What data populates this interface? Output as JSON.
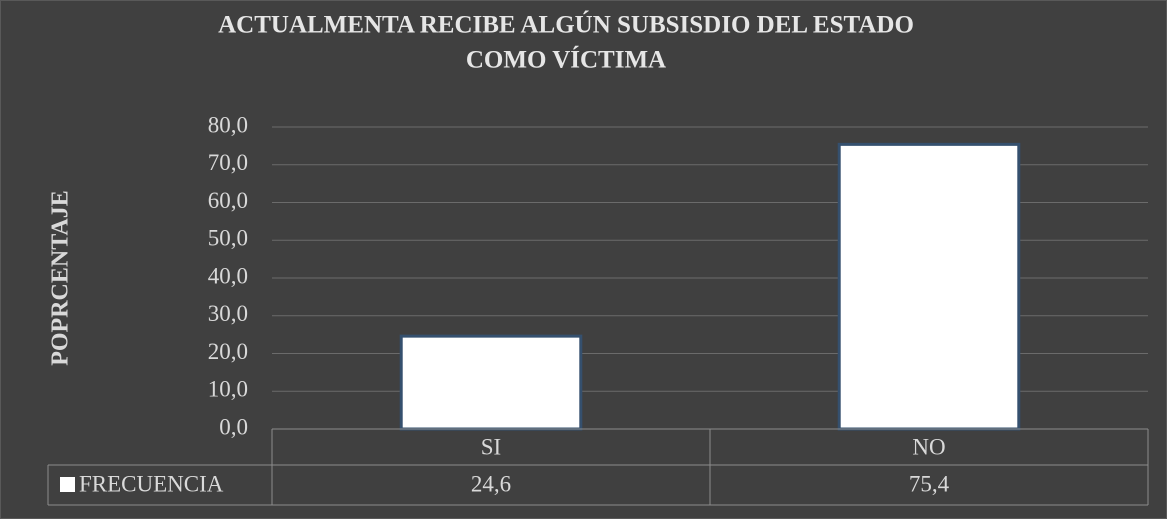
{
  "chart_data": {
    "type": "bar",
    "title": [
      "ACTUALMENTA RECIBE ALGÚN SUBSISDIO DEL ESTADO",
      "COMO VÍCTIMA"
    ],
    "y_axis_label": "POPRCENTAJE",
    "categories": [
      "SI",
      "NO"
    ],
    "series": [
      {
        "name": "FRECUENCIA",
        "color": "#ffffff",
        "values": [
          24.6,
          75.4
        ],
        "value_labels": [
          "24,6",
          "75,4"
        ]
      }
    ],
    "ylim": [
      0,
      80
    ],
    "yticks": [
      {
        "value": 0,
        "label": "0,0"
      },
      {
        "value": 10,
        "label": "10,0"
      },
      {
        "value": 20,
        "label": "20,0"
      },
      {
        "value": 30,
        "label": "30,0"
      },
      {
        "value": 40,
        "label": "40,0"
      },
      {
        "value": 50,
        "label": "50,0"
      },
      {
        "value": 60,
        "label": "60,0"
      },
      {
        "value": 70,
        "label": "70,0"
      },
      {
        "value": 80,
        "label": "80,0"
      }
    ],
    "grid": true,
    "data_table": true
  }
}
